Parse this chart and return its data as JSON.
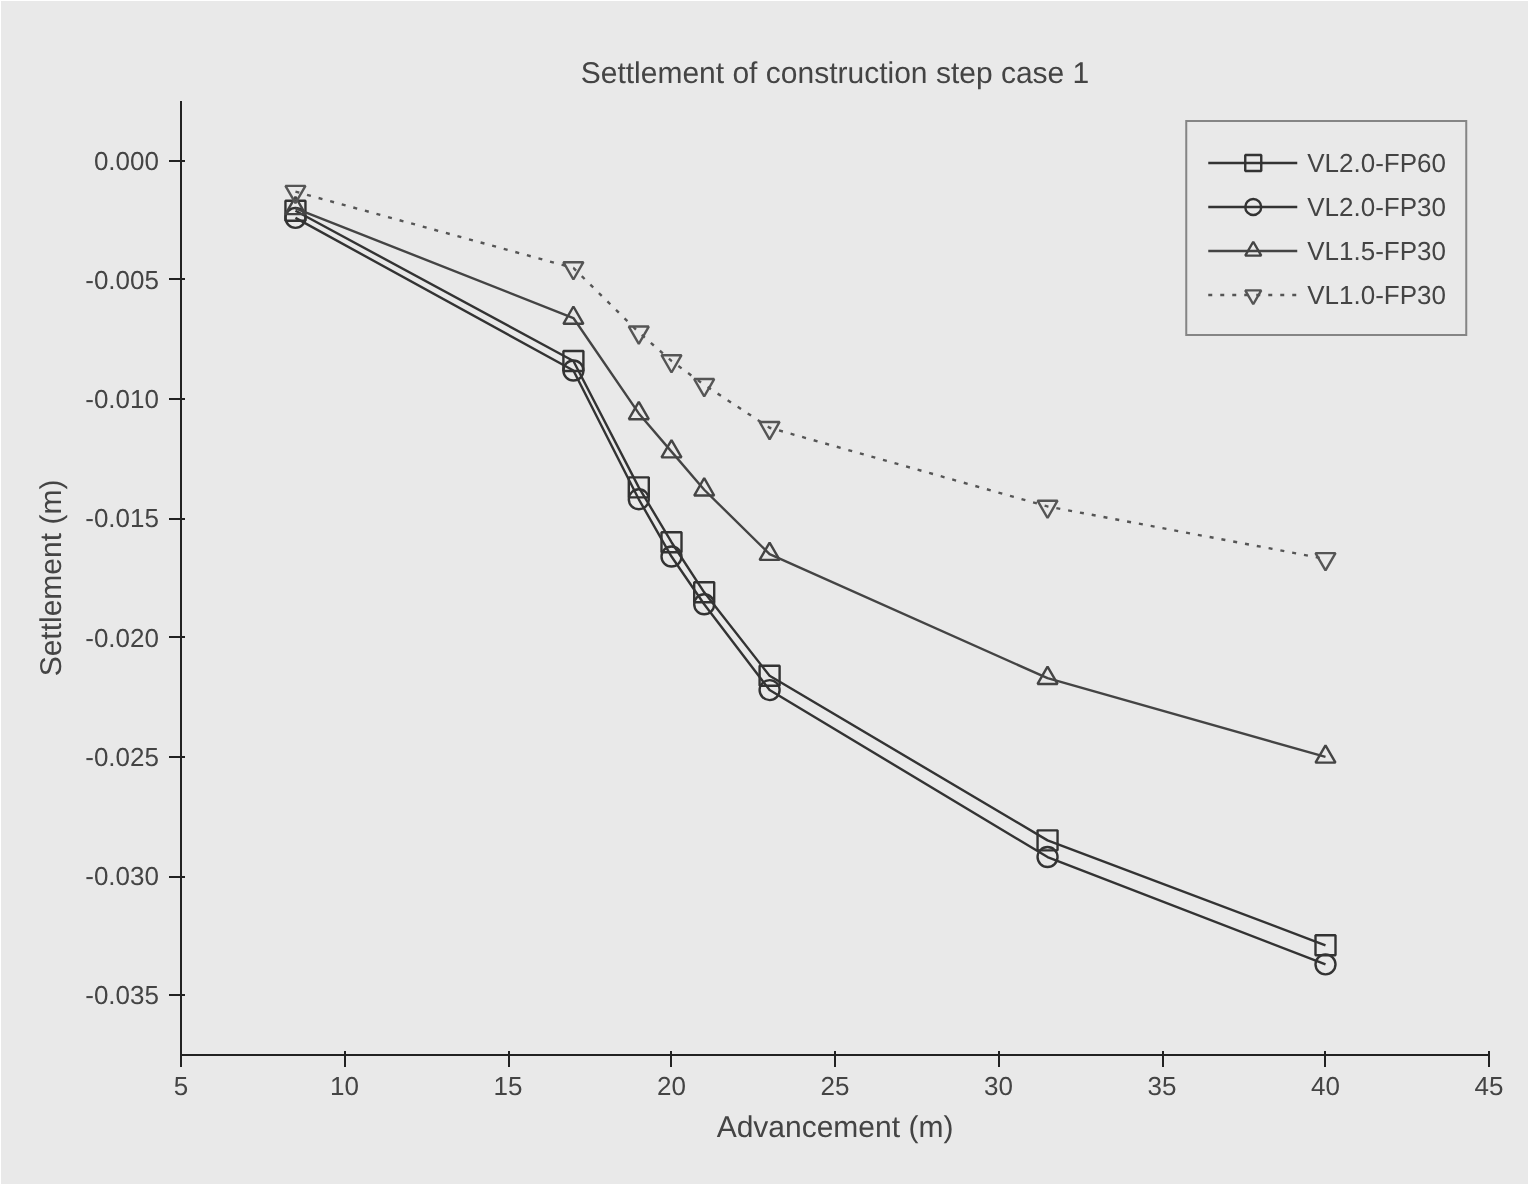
{
  "chart_data": {
    "type": "line",
    "title": "Settlement of construction step case 1",
    "xlabel": "Advancement (m)",
    "ylabel": "Settlement (m)",
    "x": [
      8.5,
      17,
      19,
      20,
      21,
      23,
      31.5,
      40
    ],
    "xlim": [
      5,
      45
    ],
    "xticks": [
      5,
      10,
      15,
      20,
      25,
      30,
      35,
      40,
      45
    ],
    "ylim": [
      -0.0375,
      0.0025
    ],
    "yticks": [
      {
        "value": 0,
        "label": "0.000"
      },
      {
        "value": -0.005,
        "label": "-0.005"
      },
      {
        "value": -0.01,
        "label": "-0.010"
      },
      {
        "value": -0.015,
        "label": "-0.015"
      },
      {
        "value": -0.02,
        "label": "-0.020"
      },
      {
        "value": -0.025,
        "label": "-0.025"
      },
      {
        "value": -0.03,
        "label": "-0.030"
      },
      {
        "value": -0.035,
        "label": "-0.035"
      }
    ],
    "legend": "top right",
    "series": [
      {
        "name": "VL2.0-FP60",
        "color": "#333333",
        "marker": "square",
        "line_style": "solid",
        "values": [
          -0.0021,
          -0.0084,
          -0.0137,
          -0.016,
          -0.0181,
          -0.0216,
          -0.0285,
          -0.0329
        ]
      },
      {
        "name": "VL2.0-FP30",
        "color": "#333333",
        "marker": "circle",
        "line_style": "solid",
        "values": [
          -0.0024,
          -0.0088,
          -0.0142,
          -0.0166,
          -0.0186,
          -0.0222,
          -0.0292,
          -0.0337
        ]
      },
      {
        "name": "VL1.5-FP30",
        "color": "#444444",
        "marker": "triangle",
        "line_style": "solid",
        "values": [
          -0.002,
          -0.0066,
          -0.0106,
          -0.0122,
          -0.0138,
          -0.0165,
          -0.0217,
          -0.025
        ]
      },
      {
        "name": "VL1.0-FP30",
        "color": "#555555",
        "marker": "triangle",
        "line_style": "dotted",
        "values": [
          -0.0013,
          -0.0045,
          -0.0072,
          -0.0084,
          -0.0094,
          -0.0112,
          -0.0145,
          -0.0167
        ]
      }
    ]
  }
}
